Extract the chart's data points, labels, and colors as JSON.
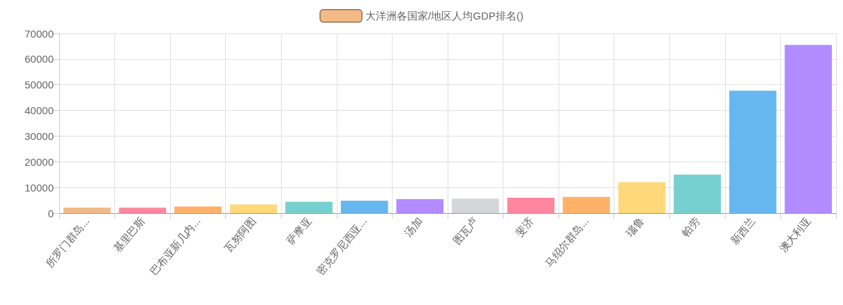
{
  "chart_data": {
    "type": "bar",
    "categories": [
      "所罗门群岛...",
      "基里巴斯",
      "巴布亚新几内...",
      "瓦努阿图",
      "萨摩亚",
      "密克罗尼西亚...",
      "汤加",
      "图瓦卢",
      "斐济",
      "马绍尔群岛...",
      "瑙鲁",
      "帕劳",
      "新西兰",
      "澳大利亚"
    ],
    "series": [
      {
        "name": "大洋洲各国家/地区人均GDP排名()",
        "color": "#f2b580",
        "values": [
          2100,
          2100,
          2600,
          3400,
          4400,
          4800,
          5400,
          5600,
          6000,
          6300,
          12100,
          15000,
          47700,
          65500
        ],
        "colors": [
          "#f2b580",
          "#ff7f9a",
          "#ffad62",
          "#ffd675",
          "#6fcdcd",
          "#5eb3ee",
          "#ad85ff",
          "#d3d4d8",
          "#ff7f9a",
          "#ffad62",
          "#ffd675",
          "#6fcdcd",
          "#5eb3ee",
          "#ad85ff"
        ]
      }
    ],
    "ylim": [
      0,
      70000
    ],
    "yticks": [
      0,
      10000,
      20000,
      30000,
      40000,
      50000,
      60000,
      70000
    ],
    "grid": true,
    "legend": "top"
  }
}
